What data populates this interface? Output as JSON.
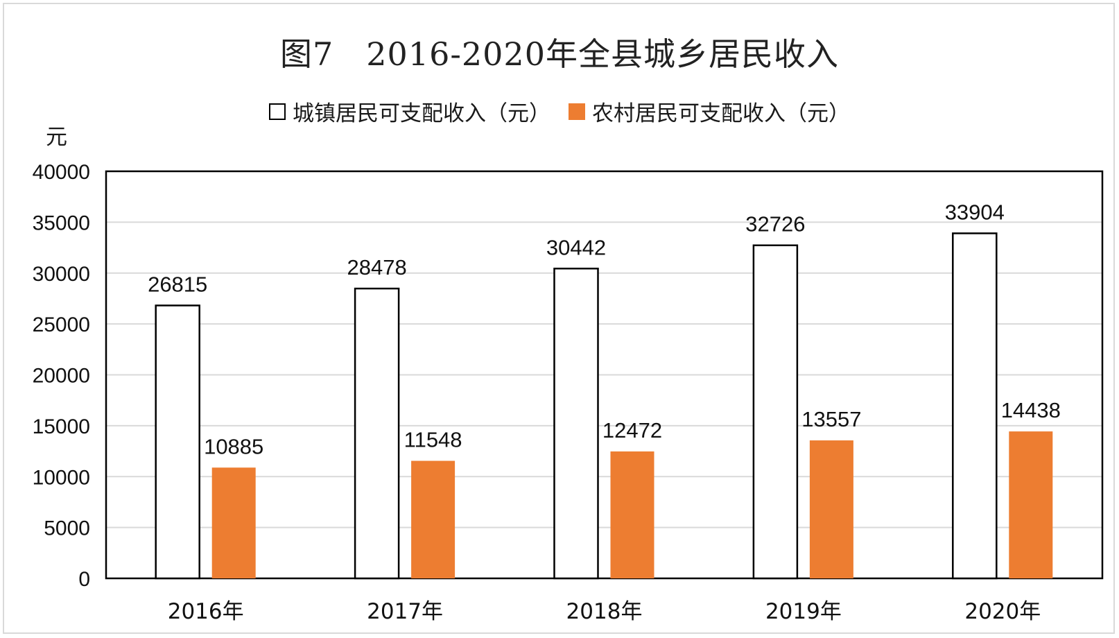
{
  "chart_data": {
    "type": "bar",
    "title": "图7　2016-2020年全县城乡居民收入",
    "ylabel": "元",
    "xlabel": "",
    "ylim": [
      0,
      40000
    ],
    "yticks": [
      0,
      5000,
      10000,
      15000,
      20000,
      25000,
      30000,
      35000,
      40000
    ],
    "categories": [
      "2016年",
      "2017年",
      "2018年",
      "2019年",
      "2020年"
    ],
    "series": [
      {
        "name": "城镇居民可支配收入（元）",
        "values": [
          26815,
          28478,
          30442,
          32726,
          33904
        ],
        "fill": "#FFFFFF",
        "stroke": "#000000"
      },
      {
        "name": "农村居民可支配收入（元）",
        "values": [
          10885,
          11548,
          12472,
          13557,
          14438
        ],
        "fill": "#ED7D31",
        "stroke": "none"
      }
    ],
    "grid": true,
    "legend_position": "top",
    "data_labels": true
  }
}
